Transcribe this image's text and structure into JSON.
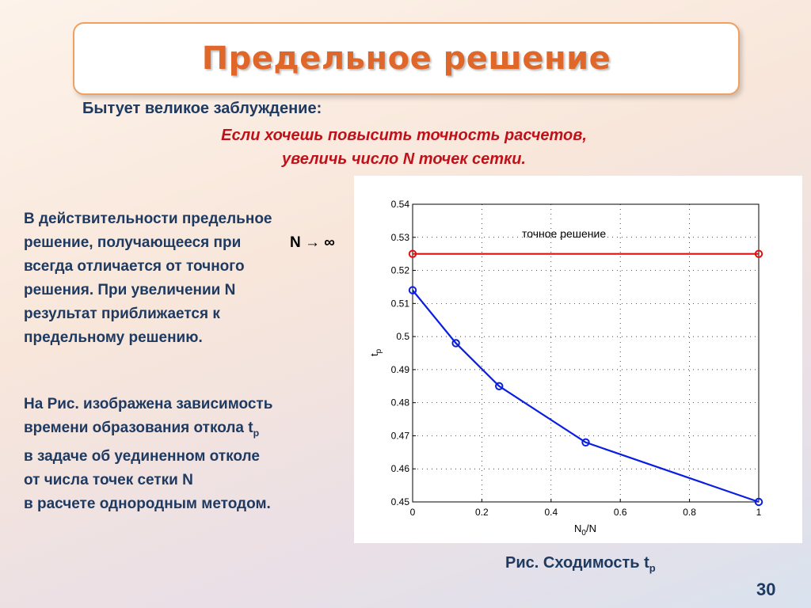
{
  "slide": {
    "title": "Предельное решение",
    "myth_label": "Бытует великое заблуждение:",
    "myth_quote_line1": "Если хочешь повысить точность расчетов,",
    "myth_quote_line2": "увеличь число N точек сетки.",
    "left_para1": [
      "В действительности предельное",
      "решение, получающееся при",
      "всегда отличается  от  точного",
      "решения. При увеличении  N",
      "результат приближается к",
      "предельному решению."
    ],
    "limit_expr": "N → ∞",
    "left_para2_line1": "На Рис. изображена зависимость",
    "left_para2_line2_prefix": "времени образования откола t",
    "left_para2_line2_sub": "p",
    "left_para2_rest": [
      "в задаче об уединенном отколе",
      "от числа точек сетки N",
      "в расчете однородным методом."
    ],
    "caption_prefix": "Рис. Сходимость t",
    "caption_sub": "p",
    "page_number": "30"
  },
  "chart_data": {
    "type": "line",
    "xlabel": "N0/N",
    "xlabel_main": "N",
    "xlabel_sub": "0",
    "xlabel_suffix": "/N",
    "ylabel": "tp",
    "ylabel_main": "t",
    "ylabel_sub": "p",
    "xlim": [
      0,
      1
    ],
    "ylim": [
      0.45,
      0.54
    ],
    "xticks": [
      "0",
      "0.2",
      "0.4",
      "0.6",
      "0.8",
      "1"
    ],
    "yticks": [
      "0.45",
      "0.46",
      "0.47",
      "0.48",
      "0.49",
      "0.5",
      "0.51",
      "0.52",
      "0.53",
      "0.54"
    ],
    "grid": true,
    "annotation": "точное решение",
    "series": [
      {
        "color": "#e01010",
        "x": [
          0,
          1
        ],
        "y": [
          0.525,
          0.525
        ]
      },
      {
        "color": "#0a1ee0",
        "x": [
          0,
          0.125,
          0.25,
          0.5,
          1
        ],
        "y": [
          0.514,
          0.498,
          0.485,
          0.468,
          0.45
        ]
      }
    ]
  }
}
